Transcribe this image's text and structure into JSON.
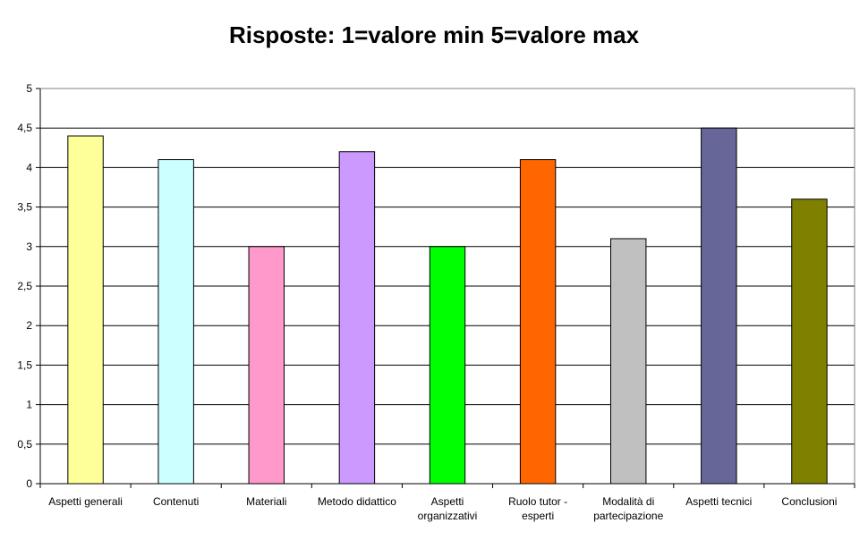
{
  "chart_data": {
    "type": "bar",
    "title": "Risposte: 1=valore min 5=valore max",
    "xlabel": "",
    "ylabel": "",
    "ylim": [
      0,
      5
    ],
    "yticks": [
      "0",
      "0,5",
      "1",
      "1,5",
      "2",
      "2,5",
      "3",
      "3,5",
      "4",
      "4,5",
      "5"
    ],
    "grid": true,
    "legend": "none",
    "categories": [
      "Aspetti generali",
      "Contenuti",
      "Materiali",
      "Metodo didattico",
      "Aspetti organizzativi",
      "Ruolo tutor - esperti",
      "Modalità di partecipazione",
      "Aspetti tecnici",
      "Conclusioni"
    ],
    "category_label_lines": [
      [
        "Aspetti generali"
      ],
      [
        "Contenuti"
      ],
      [
        "Materiali"
      ],
      [
        "Metodo didattico"
      ],
      [
        "Aspetti",
        "organizzativi"
      ],
      [
        "Ruolo tutor -",
        "esperti"
      ],
      [
        "Modalità di",
        "partecipazione"
      ],
      [
        "Aspetti tecnici"
      ],
      [
        "Conclusioni"
      ]
    ],
    "values": [
      4.4,
      4.1,
      3.0,
      4.2,
      3.0,
      4.1,
      3.1,
      4.5,
      3.6
    ],
    "colors": [
      "#FFFF99",
      "#CCFFFF",
      "#FF99CC",
      "#CC99FF",
      "#00FF00",
      "#FF6600",
      "#C0C0C0",
      "#666699",
      "#808000"
    ]
  }
}
